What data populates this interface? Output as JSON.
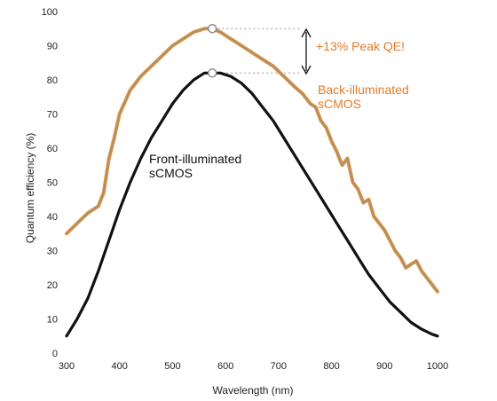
{
  "chart_data": {
    "type": "line",
    "xlabel": "Wavelength (nm)",
    "ylabel": "Quantum efficiency (%)",
    "xlim": [
      300,
      1000
    ],
    "ylim": [
      0,
      100
    ],
    "x_ticks": [
      "300",
      "400",
      "500",
      "600",
      "700",
      "800",
      "900",
      "1000"
    ],
    "y_ticks": [
      "0",
      "10",
      "20",
      "30",
      "40",
      "50",
      "60",
      "70",
      "80",
      "90",
      "100"
    ],
    "grid": false,
    "colors": {
      "back": "#e8902d",
      "back_overlay": "#8f9392",
      "front": "#111111",
      "peak_marker": "#8c8c8c",
      "annotation": "#e07b2a"
    },
    "series": [
      {
        "name": "Back-illuminated sCMOS",
        "x": [
          300,
          320,
          340,
          360,
          370,
          380,
          390,
          400,
          420,
          440,
          460,
          480,
          500,
          520,
          540,
          560,
          575,
          590,
          610,
          630,
          650,
          670,
          690,
          710,
          730,
          745,
          760,
          770,
          780,
          790,
          800,
          810,
          820,
          830,
          840,
          850,
          860,
          870,
          880,
          890,
          900,
          910,
          920,
          930,
          940,
          950,
          960,
          970,
          980,
          990,
          1000
        ],
        "y": [
          35,
          38,
          41,
          43,
          47,
          57,
          63,
          70,
          77,
          81,
          84,
          87,
          90,
          92,
          94,
          95,
          95,
          94,
          92,
          90,
          88,
          86,
          84,
          81,
          78,
          76,
          73,
          72,
          68,
          66,
          62,
          59,
          55,
          57,
          50,
          48,
          44,
          45,
          40,
          38,
          36,
          33,
          30,
          28,
          25,
          26,
          27,
          24,
          22,
          20,
          18
        ]
      },
      {
        "name": "Front-illuminated sCMOS",
        "x": [
          300,
          320,
          340,
          360,
          380,
          400,
          420,
          440,
          460,
          480,
          500,
          520,
          540,
          560,
          575,
          590,
          610,
          630,
          650,
          670,
          690,
          710,
          730,
          750,
          770,
          790,
          810,
          830,
          850,
          870,
          890,
          910,
          930,
          950,
          970,
          990,
          1000
        ],
        "y": [
          5,
          10,
          16,
          24,
          33,
          42,
          50,
          57,
          63,
          68,
          73,
          77,
          80,
          82,
          82,
          82,
          81,
          79,
          76,
          72,
          68,
          63,
          58,
          53,
          48,
          43,
          38,
          33,
          28,
          23,
          19,
          15,
          12,
          9,
          7,
          5.5,
          5
        ]
      }
    ],
    "peak_markers": [
      {
        "x": 575,
        "y": 95
      },
      {
        "x": 575,
        "y": 82
      }
    ],
    "annotations": {
      "front_label_line1": "Front-illuminated",
      "front_label_line2": "sCMOS",
      "back_label_line1": "Back-illuminated",
      "back_label_line2": "sCMOS",
      "peak_qe": "+13% Peak QE!"
    }
  }
}
